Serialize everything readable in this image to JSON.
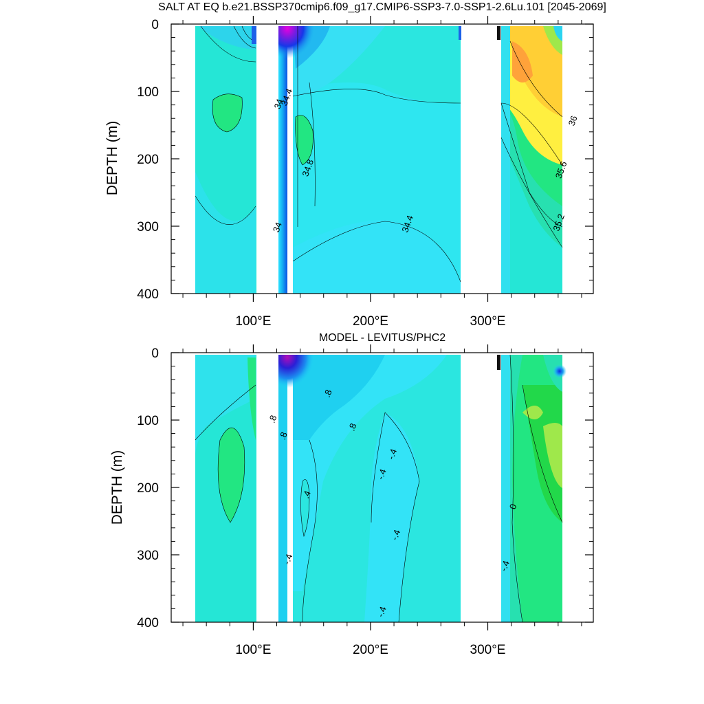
{
  "chart_data": [
    {
      "type": "heatmap",
      "title": "SALT AT EQ b.e21.BSSP370cmip6.f09_g17.CMIP6-SSP3-7.0-SSP1-2.6Lu.101 [2045-2069]",
      "ylabel": "DEPTH (m)",
      "xlabel": "",
      "xlim": [
        30,
        390
      ],
      "ylim": [
        400,
        0
      ],
      "yticks": [
        0,
        100,
        200,
        300,
        400
      ],
      "xticks": [
        100,
        200,
        300
      ],
      "xtick_labels": [
        "100°E",
        "200°E",
        "300°E"
      ],
      "contour_labels": [
        {
          "text": "34",
          "x": 124,
          "y": 120
        },
        {
          "text": "34.4",
          "x": 131,
          "y": 110
        },
        {
          "text": "34.8",
          "x": 149,
          "y": 215
        },
        {
          "text": "34",
          "x": 123,
          "y": 303
        },
        {
          "text": "34.4",
          "x": 234,
          "y": 298
        },
        {
          "text": "36",
          "x": 375,
          "y": 145
        },
        {
          "text": "35.6",
          "x": 365,
          "y": 218
        },
        {
          "text": "35.2",
          "x": 363,
          "y": 296
        }
      ]
    },
    {
      "type": "heatmap",
      "title": "MODEL - LEVITUS/PHC2",
      "ylabel": "DEPTH (m)",
      "xlabel": "",
      "xlim": [
        30,
        390
      ],
      "ylim": [
        400,
        0
      ],
      "yticks": [
        0,
        100,
        200,
        300,
        400
      ],
      "xticks": [
        100,
        200,
        300
      ],
      "xtick_labels": [
        "100°E",
        "200°E",
        "300°E"
      ],
      "contour_labels": [
        {
          "text": ".8",
          "x": 119,
          "y": 100
        },
        {
          "text": ".8",
          "x": 166,
          "y": 62
        },
        {
          "text": ".8",
          "x": 187,
          "y": 112
        },
        {
          "text": ".8",
          "x": 128,
          "y": 125
        },
        {
          "text": ".4",
          "x": 148,
          "y": 212
        },
        {
          "text": "-.4",
          "x": 221,
          "y": 152
        },
        {
          "text": "-.4",
          "x": 212,
          "y": 182
        },
        {
          "text": "-.4",
          "x": 224,
          "y": 272
        },
        {
          "text": "-.4",
          "x": 132,
          "y": 308
        },
        {
          "text": "-.4",
          "x": 212,
          "y": 386
        },
        {
          "text": "-.4",
          "x": 317,
          "y": 318
        },
        {
          "text": "0",
          "x": 324,
          "y": 230
        }
      ]
    }
  ]
}
